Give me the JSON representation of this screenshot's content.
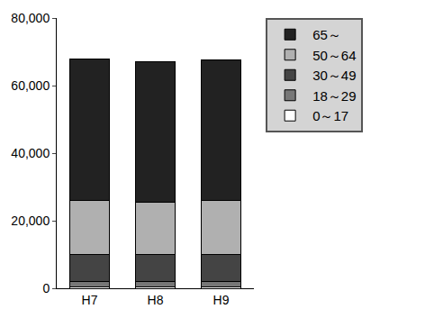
{
  "chart_data": {
    "type": "bar",
    "stacked": true,
    "legend": "right",
    "categories": [
      "H7",
      "H8",
      "H9"
    ],
    "series": [
      {
        "name": "0～17",
        "color": "#ffffff",
        "values": [
          500,
          500,
          500
        ]
      },
      {
        "name": "18～29",
        "color": "#777777",
        "values": [
          1500,
          1500,
          1500
        ]
      },
      {
        "name": "30～49",
        "color": "#444444",
        "values": [
          8000,
          8000,
          8000
        ]
      },
      {
        "name": "50～64",
        "color": "#b0b0b0",
        "values": [
          16000,
          15500,
          16000
        ]
      },
      {
        "name": "65～",
        "color": "#222222",
        "values": [
          42000,
          41500,
          41500
        ]
      }
    ],
    "ylim": [
      0,
      80000
    ],
    "yticks": [
      0,
      {
        "value": 20000,
        "label": "20,000"
      },
      {
        "value": 40000,
        "label": "40,000"
      },
      {
        "value": 60000,
        "label": "60,000"
      },
      {
        "value": 80000,
        "label": "80,000"
      }
    ],
    "grid": false
  }
}
